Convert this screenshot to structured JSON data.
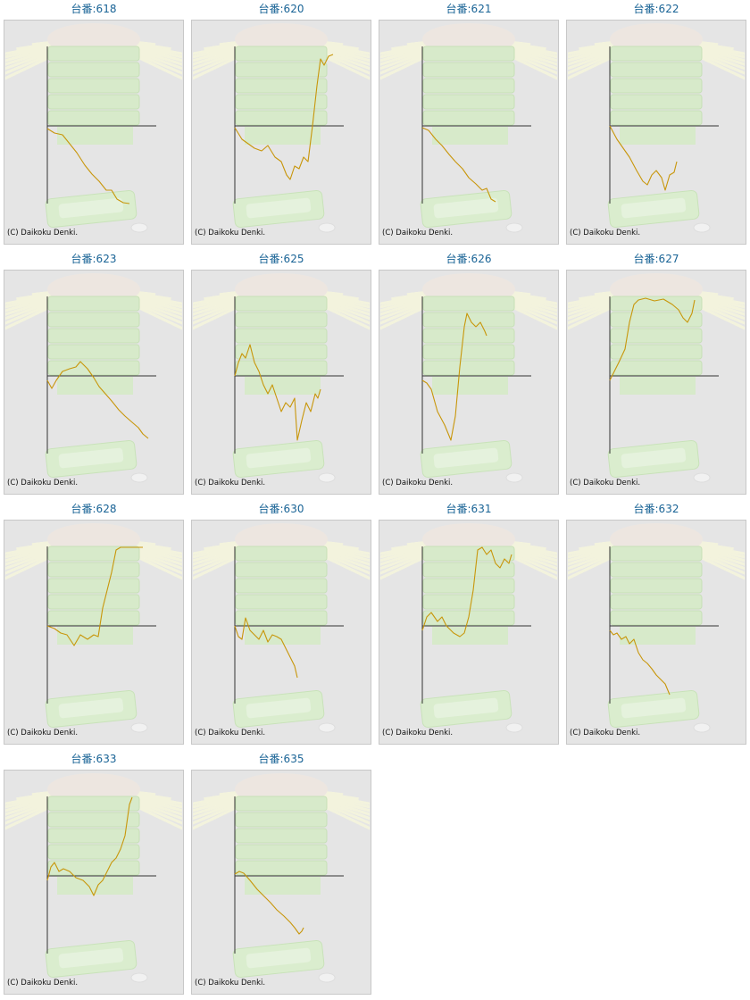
{
  "credit": "(C) Daikoku Denki.",
  "chart_data": [
    {
      "type": "line",
      "title": "台番:618",
      "color": "#c8960a",
      "xlim": [
        0,
        122
      ],
      "ylim": [
        -87,
        89
      ],
      "x": [
        0,
        8,
        17,
        25,
        33,
        42,
        50,
        58,
        66,
        72,
        78,
        85,
        92
      ],
      "values": [
        -3,
        -8,
        -10,
        -20,
        -30,
        -44,
        -54,
        -62,
        -72,
        -72,
        -82,
        -86,
        -87
      ]
    },
    {
      "type": "line",
      "title": "台番:620",
      "color": "#c8960a",
      "xlim": [
        0,
        122
      ],
      "ylim": [
        -87,
        89
      ],
      "x": [
        0,
        8,
        15,
        22,
        30,
        37,
        45,
        52,
        58,
        62,
        67,
        72,
        77,
        82,
        87,
        92,
        96,
        100,
        105,
        110
      ],
      "values": [
        -2,
        -15,
        -20,
        -25,
        -28,
        -22,
        -35,
        -40,
        -55,
        -60,
        -45,
        -48,
        -35,
        -40,
        0,
        45,
        75,
        68,
        78,
        80
      ]
    },
    {
      "type": "line",
      "title": "台番:621",
      "color": "#c8960a",
      "xlim": [
        0,
        122
      ],
      "ylim": [
        -87,
        89
      ],
      "x": [
        0,
        7,
        15,
        22,
        30,
        37,
        45,
        52,
        60,
        67,
        72,
        77,
        82
      ],
      "values": [
        -2,
        -5,
        -15,
        -22,
        -32,
        -40,
        -48,
        -58,
        -65,
        -72,
        -70,
        -82,
        -85
      ]
    },
    {
      "type": "line",
      "title": "台番:622",
      "color": "#c8960a",
      "xlim": [
        0,
        122
      ],
      "ylim": [
        -87,
        89
      ],
      "x": [
        0,
        8,
        15,
        22,
        30,
        37,
        42,
        47,
        52,
        58,
        62,
        67,
        72,
        75
      ],
      "values": [
        0,
        -15,
        -25,
        -35,
        -50,
        -62,
        -66,
        -55,
        -50,
        -58,
        -72,
        -55,
        -52,
        -40
      ]
    },
    {
      "type": "line",
      "title": "台番:623",
      "color": "#c8960a",
      "xlim": [
        0,
        122
      ],
      "ylim": [
        -87,
        89
      ],
      "x": [
        0,
        5,
        10,
        17,
        25,
        32,
        37,
        45,
        52,
        58,
        65,
        72,
        80,
        87,
        95,
        102,
        107,
        113
      ],
      "values": [
        -5,
        -14,
        -5,
        5,
        8,
        10,
        16,
        8,
        -2,
        -12,
        -20,
        -28,
        -38,
        -45,
        -52,
        -58,
        -65,
        -70
      ]
    },
    {
      "type": "line",
      "title": "台番:625",
      "color": "#c8960a",
      "xlim": [
        0,
        122
      ],
      "ylim": [
        -87,
        89
      ],
      "x": [
        0,
        4,
        8,
        12,
        17,
        22,
        27,
        32,
        37,
        42,
        47,
        52,
        57,
        62,
        67,
        70,
        75,
        80,
        85,
        90,
        93,
        96
      ],
      "values": [
        0,
        15,
        25,
        20,
        35,
        15,
        5,
        -10,
        -20,
        -10,
        -25,
        -40,
        -30,
        -35,
        -25,
        -72,
        -50,
        -30,
        -40,
        -20,
        -25,
        -15
      ]
    },
    {
      "type": "line",
      "title": "台番:626",
      "color": "#c8960a",
      "xlim": [
        0,
        122
      ],
      "ylim": [
        -87,
        89
      ],
      "x": [
        0,
        5,
        10,
        17,
        25,
        32,
        37,
        42,
        47,
        50,
        55,
        60,
        65,
        70,
        72
      ],
      "values": [
        -5,
        -8,
        -15,
        -40,
        -55,
        -72,
        -45,
        10,
        55,
        70,
        60,
        55,
        60,
        50,
        45
      ]
    },
    {
      "type": "line",
      "title": "台番:627",
      "color": "#c8960a",
      "xlim": [
        0,
        122
      ],
      "ylim": [
        -87,
        89
      ],
      "x": [
        0,
        5,
        10,
        17,
        22,
        27,
        32,
        40,
        50,
        60,
        70,
        77,
        82,
        87,
        92,
        95
      ],
      "values": [
        -5,
        5,
        15,
        30,
        60,
        80,
        85,
        87,
        84,
        86,
        80,
        74,
        65,
        60,
        70,
        85
      ]
    },
    {
      "type": "line",
      "title": "台番:628",
      "color": "#c8960a",
      "xlim": [
        0,
        122
      ],
      "ylim": [
        -87,
        89
      ],
      "x": [
        0,
        8,
        15,
        22,
        30,
        37,
        45,
        52,
        57,
        62,
        67,
        72,
        77,
        82,
        90,
        100,
        107
      ],
      "values": [
        0,
        -3,
        -8,
        -10,
        -22,
        -10,
        -15,
        -10,
        -12,
        20,
        40,
        60,
        85,
        88,
        88,
        88,
        88
      ]
    },
    {
      "type": "line",
      "title": "台番:630",
      "color": "#c8960a",
      "xlim": [
        0,
        122
      ],
      "ylim": [
        -87,
        89
      ],
      "x": [
        0,
        4,
        8,
        12,
        17,
        22,
        27,
        32,
        37,
        42,
        47,
        52,
        57,
        62,
        67,
        70
      ],
      "values": [
        0,
        -12,
        -15,
        9,
        -5,
        -10,
        -15,
        -5,
        -18,
        -10,
        -12,
        -15,
        -25,
        -35,
        -45,
        -58
      ]
    },
    {
      "type": "line",
      "title": "台番:631",
      "color": "#c8960a",
      "xlim": [
        0,
        122
      ],
      "ylim": [
        -87,
        89
      ],
      "x": [
        0,
        5,
        10,
        17,
        22,
        27,
        35,
        42,
        47,
        52,
        57,
        62,
        67,
        72,
        77,
        82,
        87,
        92,
        97,
        100
      ],
      "values": [
        -5,
        10,
        15,
        5,
        10,
        0,
        -8,
        -12,
        -8,
        10,
        40,
        85,
        88,
        80,
        85,
        70,
        65,
        75,
        70,
        80
      ]
    },
    {
      "type": "line",
      "title": "台番:632",
      "color": "#c8960a",
      "xlim": [
        0,
        122
      ],
      "ylim": [
        -87,
        89
      ],
      "x": [
        0,
        4,
        8,
        13,
        18,
        22,
        27,
        32,
        37,
        42,
        47,
        52,
        57,
        62,
        67
      ],
      "values": [
        -5,
        -10,
        -8,
        -15,
        -12,
        -20,
        -15,
        -30,
        -38,
        -42,
        -48,
        -55,
        -60,
        -65,
        -77
      ]
    },
    {
      "type": "line",
      "title": "台番:633",
      "color": "#c8960a",
      "xlim": [
        0,
        122
      ],
      "ylim": [
        -87,
        89
      ],
      "x": [
        0,
        4,
        8,
        13,
        18,
        25,
        32,
        40,
        47,
        52,
        57,
        62,
        67,
        72,
        77,
        82,
        87,
        92,
        95
      ],
      "values": [
        -5,
        10,
        15,
        5,
        8,
        5,
        -2,
        -5,
        -12,
        -22,
        -10,
        -5,
        5,
        15,
        20,
        30,
        45,
        80,
        88
      ]
    },
    {
      "type": "line",
      "title": "台番:635",
      "color": "#c8960a",
      "xlim": [
        0,
        122
      ],
      "ylim": [
        -87,
        89
      ],
      "x": [
        0,
        5,
        10,
        17,
        25,
        32,
        40,
        47,
        55,
        62,
        67,
        72,
        75,
        77
      ],
      "values": [
        2,
        5,
        3,
        -5,
        -15,
        -22,
        -30,
        -38,
        -45,
        -52,
        -58,
        -65,
        -62,
        -58
      ]
    }
  ]
}
